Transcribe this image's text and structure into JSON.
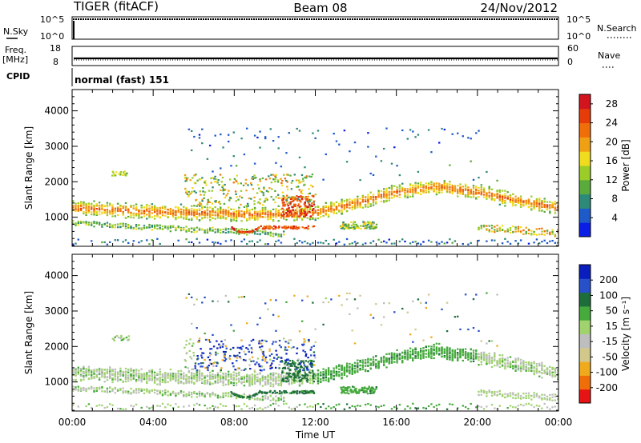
{
  "header": {
    "left": "TIGER (fitACF)",
    "center": "Beam 08",
    "right": "24/Nov/2012"
  },
  "status": {
    "nsky_label": "N.Sky",
    "nsky_ticks": [
      "10^5",
      "10^0"
    ],
    "nsearch_label": "N.Search",
    "nsearch_ticks": [
      "10^5",
      "10^0"
    ],
    "freq_label": "Freq.",
    "freq_unit": "[MHz]",
    "freq_ticks": [
      "18",
      "8"
    ],
    "nave_label": "Nave",
    "nave_ticks": [
      "60",
      "0"
    ],
    "cpid_label": "CPID",
    "cpid_value": "normal (fast) 151"
  },
  "colors": {
    "power": [
      "#0a1ee6",
      "#1e5ac8",
      "#2e8a78",
      "#5aaa3c",
      "#9ccc28",
      "#f0dc1e",
      "#f0a014",
      "#f06e0a",
      "#e63c0a",
      "#d2141e"
    ],
    "velocity": [
      "#e61414",
      "#f06e0a",
      "#f0aa1e",
      "#d2c88c",
      "#bebebe",
      "#a0d26e",
      "#46aa3c",
      "#1e6e3c",
      "#2850c8",
      "#0a1ebe"
    ]
  },
  "chart_data": [
    {
      "type": "heatmap",
      "panel": "power",
      "xlabel": "Time UT",
      "ylabel": "Slant Range [km]",
      "x_ticks": [
        "00:00",
        "04:00",
        "08:00",
        "12:00",
        "16:00",
        "20:00",
        "00:00"
      ],
      "x_range_hours": [
        0,
        24
      ],
      "y_ticks": [
        1000,
        2000,
        3000,
        4000
      ],
      "ylim": [
        180,
        4600
      ],
      "colorbar_label": "Power [dB]",
      "colorbar_ticks": [
        "28",
        "24",
        "20",
        "16",
        "12",
        "8",
        "4"
      ],
      "colorbar_range": [
        0,
        30
      ]
    },
    {
      "type": "heatmap",
      "panel": "velocity",
      "xlabel": "Time UT",
      "ylabel": "Slant Range [km]",
      "x_ticks": [
        "00:00",
        "04:00",
        "08:00",
        "12:00",
        "16:00",
        "20:00",
        "00:00"
      ],
      "x_range_hours": [
        0,
        24
      ],
      "y_ticks": [
        1000,
        2000,
        3000,
        4000
      ],
      "ylim": [
        180,
        4600
      ],
      "colorbar_label": "Velocity [m s⁻¹]",
      "colorbar_ticks": [
        "200",
        "100",
        "50",
        "15",
        "-15",
        "-50",
        "-100",
        "-200"
      ],
      "colorbar_range": [
        -250,
        250
      ]
    }
  ]
}
